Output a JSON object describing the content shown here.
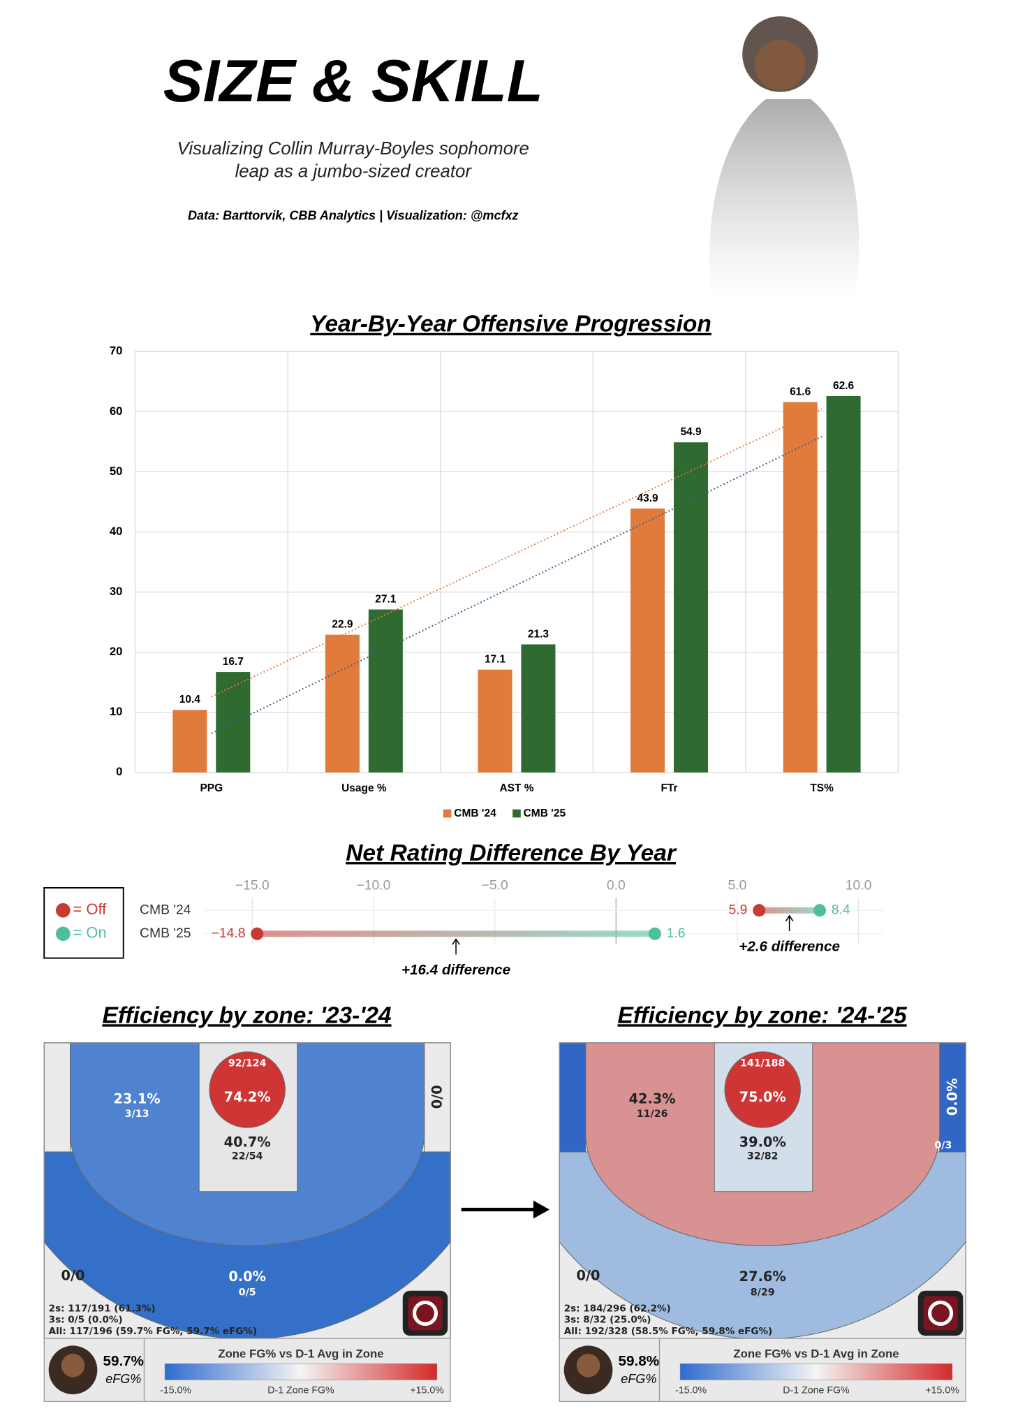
{
  "header": {
    "title": "SIZE & SKILL",
    "subtitle": [
      "Visualizing Collin Murray-Boyles sophomore",
      "leap as a jumbo-sized creator"
    ],
    "source": "Data: Barttorvik, CBB Analytics | Visualization: @mcfxz"
  },
  "chart_data": [
    {
      "type": "bar",
      "title": "Year-By-Year Offensive Progression",
      "categories": [
        "PPG",
        "Usage %",
        "AST %",
        "FTr",
        "TS%"
      ],
      "series": [
        {
          "name": "CMB '24",
          "color": "#e07b3c",
          "trend_color": "#2f5f8f",
          "values": [
            10.4,
            22.9,
            17.1,
            43.9,
            61.6
          ]
        },
        {
          "name": "CMB '25",
          "color": "#2f6b30",
          "trend_color": "#e07b3c",
          "values": [
            16.7,
            27.1,
            21.3,
            54.9,
            62.6
          ]
        }
      ],
      "ylim": [
        0,
        70
      ],
      "yticks": [
        0,
        10,
        20,
        30,
        40,
        50,
        60,
        70
      ],
      "grid": true,
      "trendline": true,
      "legend": "bottom"
    },
    {
      "type": "dumbbell",
      "title": "Net Rating Difference By Year",
      "categories": [
        "CMB '24",
        "CMB '25"
      ],
      "series": [
        {
          "name": "= Off",
          "color": "#c83a34",
          "values": [
            5.9,
            -14.8
          ],
          "value_labels": [
            "5.9",
            "−14.8"
          ]
        },
        {
          "name": "= On",
          "color": "#4dbf9f",
          "values": [
            8.4,
            1.6
          ],
          "value_labels": [
            "8.4",
            "1.6"
          ]
        }
      ],
      "xlim": [
        -17,
        11
      ],
      "xticks": [
        {
          "value": -15,
          "label": "−15.0"
        },
        {
          "value": -10,
          "label": "−10.0"
        },
        {
          "value": -5,
          "label": "−5.0"
        },
        {
          "value": 0,
          "label": "0.0"
        },
        {
          "value": 5,
          "label": "5.0"
        },
        {
          "value": 10,
          "label": "10.0"
        }
      ],
      "annotations": [
        "+2.6 difference",
        "+16.4 difference"
      ]
    }
  ],
  "zone_charts": [
    {
      "title": "Efficiency by zone: '23-'24",
      "zones": [
        {
          "color": "#ebebeb",
          "labels": []
        },
        {
          "color": "#ebebeb",
          "labels": [
            "0/0"
          ]
        },
        {
          "color": "#ebebeb",
          "labels": [
            "0/0"
          ]
        },
        {
          "color": "#3570c8",
          "labels": [
            "0.0%",
            "0/5"
          ]
        },
        {
          "color": "#4f83d0",
          "labels": [
            "23.1%",
            "3/13"
          ]
        },
        {
          "color": "#e6e6e6",
          "labels": [
            "40.7%",
            "22/54"
          ]
        },
        {
          "color": "#d03535",
          "labels": [
            "92/124",
            "74.2%"
          ]
        }
      ],
      "totals": [
        "2s: 117/191 (61.3%)",
        "3s: 0/5 (0.0%)",
        "All: 117/196 (59.7% FG%, 59.7% eFG%)"
      ],
      "footer": {
        "efg": "59.7%",
        "efg_label": "eFG%",
        "legend_title": "Zone FG% vs D-1 Avg in Zone",
        "legend_min": "-15.0%",
        "legend_axis": "D-1 Zone FG%",
        "legend_max": "+15.0%"
      }
    },
    {
      "title": "Efficiency by zone: '24-'25",
      "zones": [
        {
          "color": "#3266c4",
          "labels": []
        },
        {
          "color": "#3266c4",
          "labels": [
            "0.0%",
            "0/3"
          ]
        },
        {
          "color": "#ebebeb",
          "labels": [
            "0/0"
          ]
        },
        {
          "color": "#9fbbe0",
          "labels": [
            "27.6%",
            "8/29"
          ]
        },
        {
          "color": "#d99292",
          "labels": [
            "42.3%",
            "11/26"
          ]
        },
        {
          "color": "#d3deeb",
          "labels": [
            "39.0%",
            "32/82"
          ]
        },
        {
          "color": "#d03535",
          "labels": [
            "141/188",
            "75.0%"
          ]
        }
      ],
      "totals": [
        "2s: 184/296 (62.2%)",
        "3s: 8/32 (25.0%)",
        "All: 192/328 (58.5% FG%, 59.8% eFG%)"
      ],
      "footer": {
        "efg": "59.8%",
        "efg_label": "eFG%",
        "legend_title": "Zone FG% vs D-1 Avg in Zone",
        "legend_min": "-15.0%",
        "legend_axis": "D-1 Zone FG%",
        "legend_max": "+15.0%"
      }
    }
  ]
}
